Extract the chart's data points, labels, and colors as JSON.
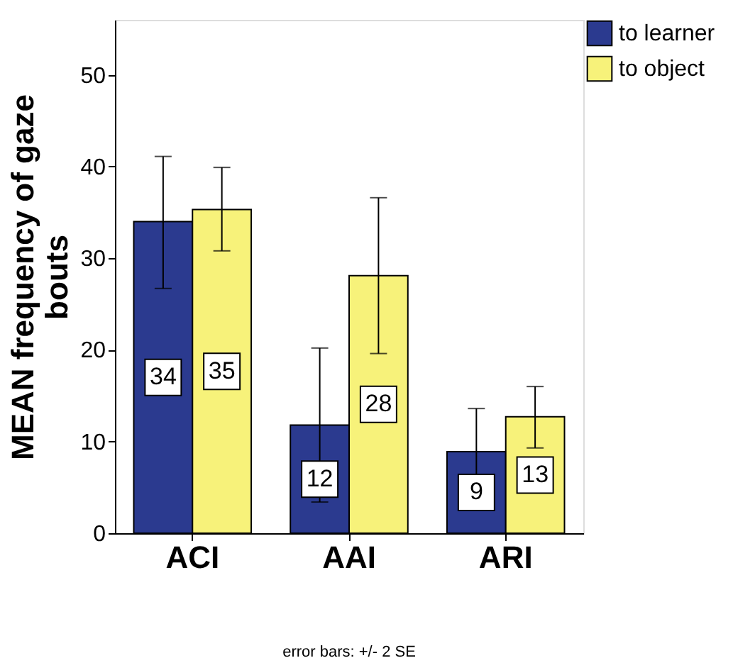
{
  "chart_data": {
    "type": "bar",
    "ylabel": "MEAN frequency of gaze bouts",
    "categories": [
      "ACI",
      "AAI",
      "ARI"
    ],
    "series": [
      {
        "name": "to learner",
        "color": "#2b3a8f",
        "values": [
          34.0,
          11.8,
          8.9
        ],
        "value_labels": [
          "34",
          "12",
          "9"
        ],
        "errors": [
          [
            26.7,
            41.1
          ],
          [
            3.4,
            20.2
          ],
          [
            4.1,
            13.6
          ]
        ]
      },
      {
        "name": "to object",
        "color": "#f7f27a",
        "values": [
          35.3,
          28.1,
          12.7
        ],
        "value_labels": [
          "35",
          "28",
          "13"
        ],
        "errors": [
          [
            30.8,
            39.9
          ],
          [
            19.6,
            36.6
          ],
          [
            9.3,
            16.0
          ]
        ]
      }
    ],
    "ylim": [
      0,
      56
    ],
    "yticks": [
      0,
      10,
      20,
      30,
      40,
      50
    ],
    "grid": false,
    "legend": "top right",
    "annotations": [
      "error bars: +/- 2 SE"
    ]
  }
}
